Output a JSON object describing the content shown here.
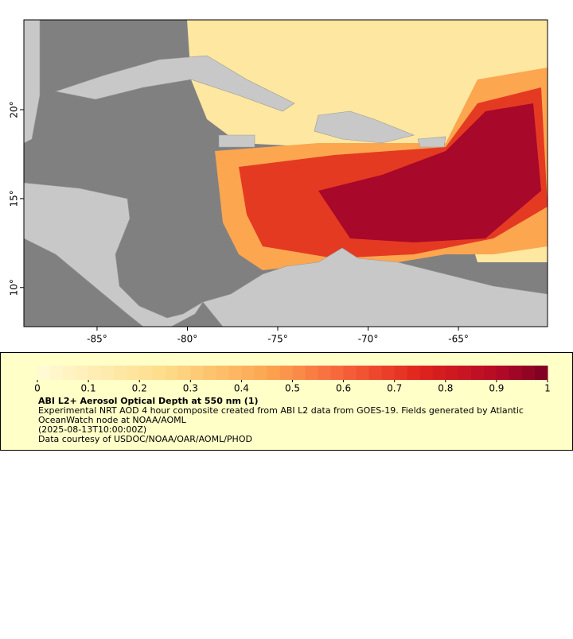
{
  "chart_data": {
    "type": "map",
    "xlim": [
      -89.05,
      -60.07
    ],
    "ylim": [
      7.8,
      25.05
    ],
    "xticks": [
      {
        "value": -85,
        "label": "-85°"
      },
      {
        "value": -80,
        "label": "-80°"
      },
      {
        "value": -75,
        "label": "-75°"
      },
      {
        "value": -70,
        "label": "-70°"
      },
      {
        "value": -65,
        "label": "-65°"
      }
    ],
    "yticks": [
      {
        "value": 10,
        "label": "10°"
      },
      {
        "value": 15,
        "label": "15°"
      },
      {
        "value": 20,
        "label": "20°"
      }
    ],
    "colorbar": {
      "title": "ABI L2+ Aerosol Optical Depth at 550 nm (1)",
      "lim": [
        0,
        1
      ],
      "ticks": [
        0,
        0.1,
        0.2,
        0.3,
        0.4,
        0.5,
        0.6,
        0.7,
        0.8,
        0.9,
        1
      ],
      "levels": 40,
      "colormap": [
        {
          "value": 0,
          "color": "#fffbd8"
        },
        {
          "value": 0.25,
          "color": "#fedc88"
        },
        {
          "value": 0.45,
          "color": "#fca650"
        },
        {
          "value": 0.6,
          "color": "#f7623a"
        },
        {
          "value": 0.75,
          "color": "#e0241e"
        },
        {
          "value": 0.9,
          "color": "#b50a26"
        },
        {
          "value": 1,
          "color": "#7c0022"
        }
      ]
    },
    "description": "Experimental NRT AOD 4 hour composite created from ABI L2 data from GOES-19. Fields generated by Atlantic OceanWatch node at NOAA/AOML",
    "timestamp": "(2025-08-13T10:00:00Z)",
    "credit": "Data courtesy of USDOC/NOAA/OAR/AOML/PHOD"
  }
}
